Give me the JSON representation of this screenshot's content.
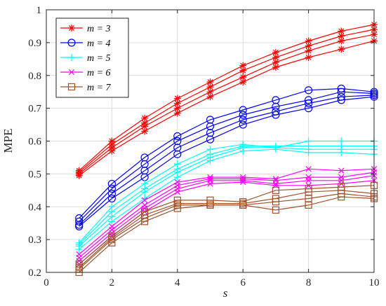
{
  "chart_data": {
    "type": "line",
    "xlabel": "s",
    "ylabel": "MPE",
    "xlim": [
      0,
      10
    ],
    "ylim": [
      0.2,
      1.0
    ],
    "xticks": [
      "0",
      "2",
      "4",
      "6",
      "8",
      "10"
    ],
    "yticks": [
      "0.2",
      "0.3",
      "0.4",
      "0.5",
      "0.6",
      "0.7",
      "0.8",
      "0.9",
      "1"
    ],
    "grid": true,
    "legend_position": "top-left",
    "x": [
      1,
      2,
      3,
      4,
      5,
      6,
      7,
      8,
      9,
      10
    ],
    "groups": [
      {
        "name": "m = 3",
        "color": "#ff0000",
        "marker": "asterisk",
        "lines": [
          [
            0.51,
            0.6,
            0.67,
            0.73,
            0.78,
            0.83,
            0.87,
            0.905,
            0.935,
            0.955
          ],
          [
            0.505,
            0.59,
            0.655,
            0.715,
            0.765,
            0.815,
            0.855,
            0.89,
            0.92,
            0.94
          ],
          [
            0.5,
            0.58,
            0.645,
            0.7,
            0.75,
            0.795,
            0.84,
            0.875,
            0.905,
            0.925
          ],
          [
            0.495,
            0.57,
            0.63,
            0.685,
            0.735,
            0.78,
            0.825,
            0.855,
            0.88,
            0.905
          ]
        ]
      },
      {
        "name": "m = 4",
        "color": "#0000ff",
        "marker": "circle",
        "lines": [
          [
            0.365,
            0.47,
            0.55,
            0.615,
            0.665,
            0.695,
            0.725,
            0.755,
            0.76,
            0.75
          ],
          [
            0.355,
            0.455,
            0.53,
            0.6,
            0.645,
            0.68,
            0.705,
            0.725,
            0.75,
            0.745
          ],
          [
            0.345,
            0.44,
            0.51,
            0.58,
            0.625,
            0.665,
            0.69,
            0.715,
            0.735,
            0.74
          ],
          [
            0.34,
            0.425,
            0.49,
            0.56,
            0.605,
            0.65,
            0.68,
            0.7,
            0.725,
            0.735
          ]
        ]
      },
      {
        "name": "m = 5",
        "color": "#00ffff",
        "marker": "plus",
        "lines": [
          [
            0.29,
            0.4,
            0.47,
            0.53,
            0.575,
            0.59,
            0.58,
            0.6,
            0.6,
            0.6
          ],
          [
            0.285,
            0.385,
            0.455,
            0.515,
            0.56,
            0.585,
            0.585,
            0.585,
            0.585,
            0.585
          ],
          [
            0.28,
            0.37,
            0.445,
            0.505,
            0.55,
            0.58,
            0.58,
            0.575,
            0.575,
            0.575
          ],
          [
            0.27,
            0.355,
            0.425,
            0.49,
            0.54,
            0.57,
            0.575,
            0.565,
            0.565,
            0.56
          ]
        ]
      },
      {
        "name": "m = 6",
        "color": "#ff00ff",
        "marker": "x",
        "lines": [
          [
            0.255,
            0.34,
            0.42,
            0.475,
            0.49,
            0.49,
            0.485,
            0.515,
            0.51,
            0.515
          ],
          [
            0.245,
            0.33,
            0.405,
            0.465,
            0.485,
            0.485,
            0.48,
            0.49,
            0.49,
            0.505
          ],
          [
            0.235,
            0.32,
            0.395,
            0.455,
            0.48,
            0.48,
            0.47,
            0.48,
            0.48,
            0.495
          ],
          [
            0.225,
            0.31,
            0.385,
            0.445,
            0.47,
            0.475,
            0.465,
            0.465,
            0.47,
            0.48
          ]
        ]
      },
      {
        "name": "m = 7",
        "color": "#a0522d",
        "marker": "square",
        "lines": [
          [
            0.225,
            0.31,
            0.385,
            0.42,
            0.42,
            0.415,
            0.45,
            0.455,
            0.46,
            0.465
          ],
          [
            0.215,
            0.305,
            0.375,
            0.41,
            0.41,
            0.41,
            0.425,
            0.445,
            0.45,
            0.44
          ],
          [
            0.21,
            0.3,
            0.365,
            0.405,
            0.405,
            0.405,
            0.415,
            0.425,
            0.44,
            0.43
          ],
          [
            0.2,
            0.29,
            0.355,
            0.395,
            0.405,
            0.405,
            0.39,
            0.405,
            0.43,
            0.425
          ]
        ]
      }
    ]
  }
}
